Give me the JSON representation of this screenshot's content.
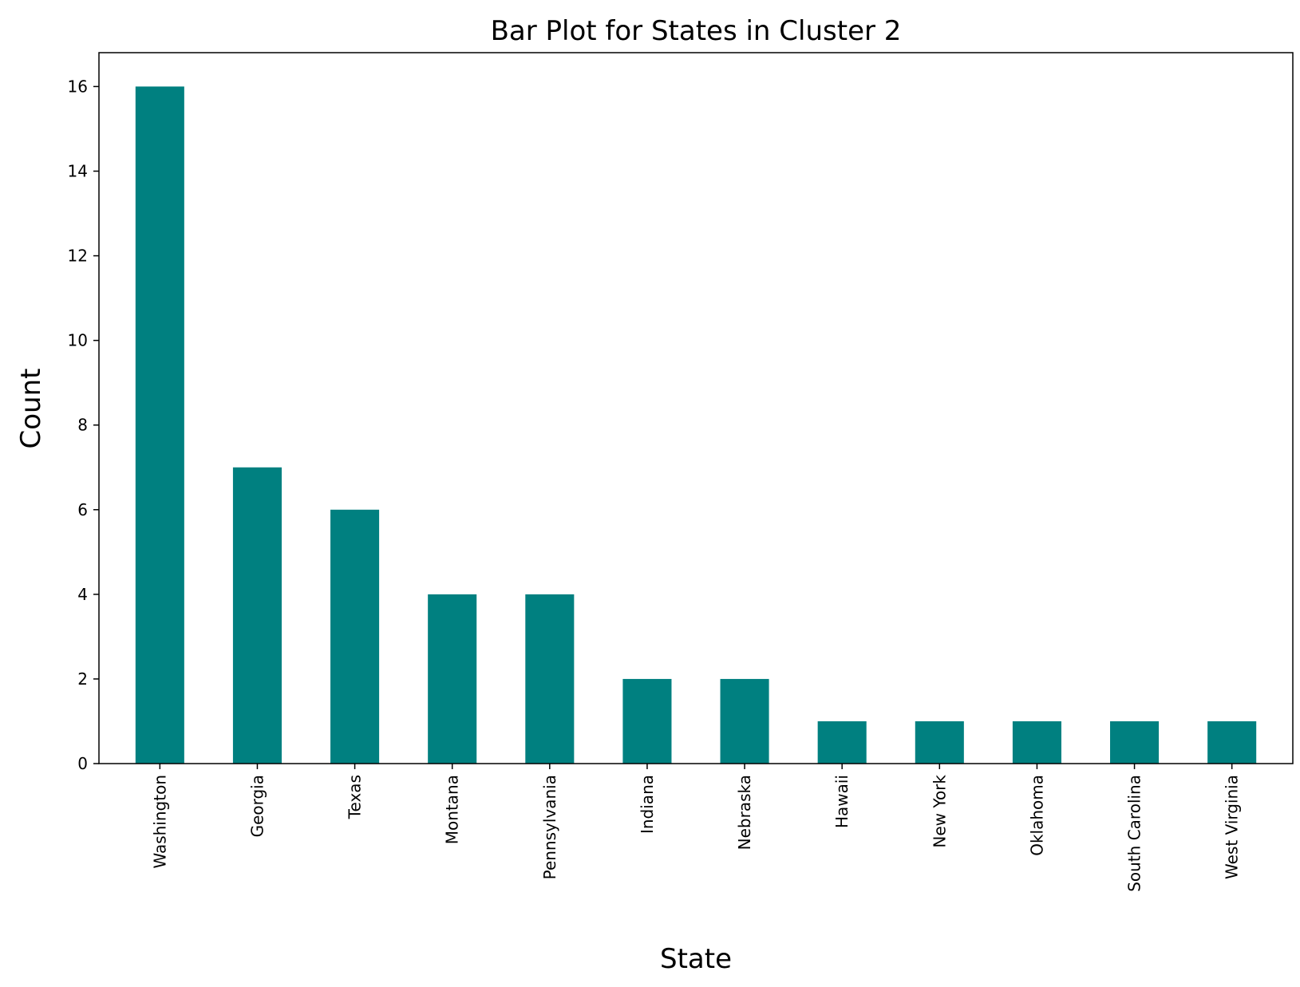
{
  "chart_data": {
    "type": "bar",
    "title": "Bar Plot for States in Cluster 2",
    "xlabel": "State",
    "ylabel": "Count",
    "categories": [
      "Washington",
      "Georgia",
      "Texas",
      "Montana",
      "Pennsylvania",
      "Indiana",
      "Nebraska",
      "Hawaii",
      "New York",
      "Oklahoma",
      "South Carolina",
      "West Virginia"
    ],
    "values": [
      16,
      7,
      6,
      4,
      4,
      2,
      2,
      1,
      1,
      1,
      1,
      1
    ],
    "ylim": [
      0,
      16.8
    ],
    "yticks": [
      0,
      2,
      4,
      6,
      8,
      10,
      12,
      14,
      16
    ],
    "grid": false,
    "legend": "none",
    "bar_color": "#008080"
  }
}
